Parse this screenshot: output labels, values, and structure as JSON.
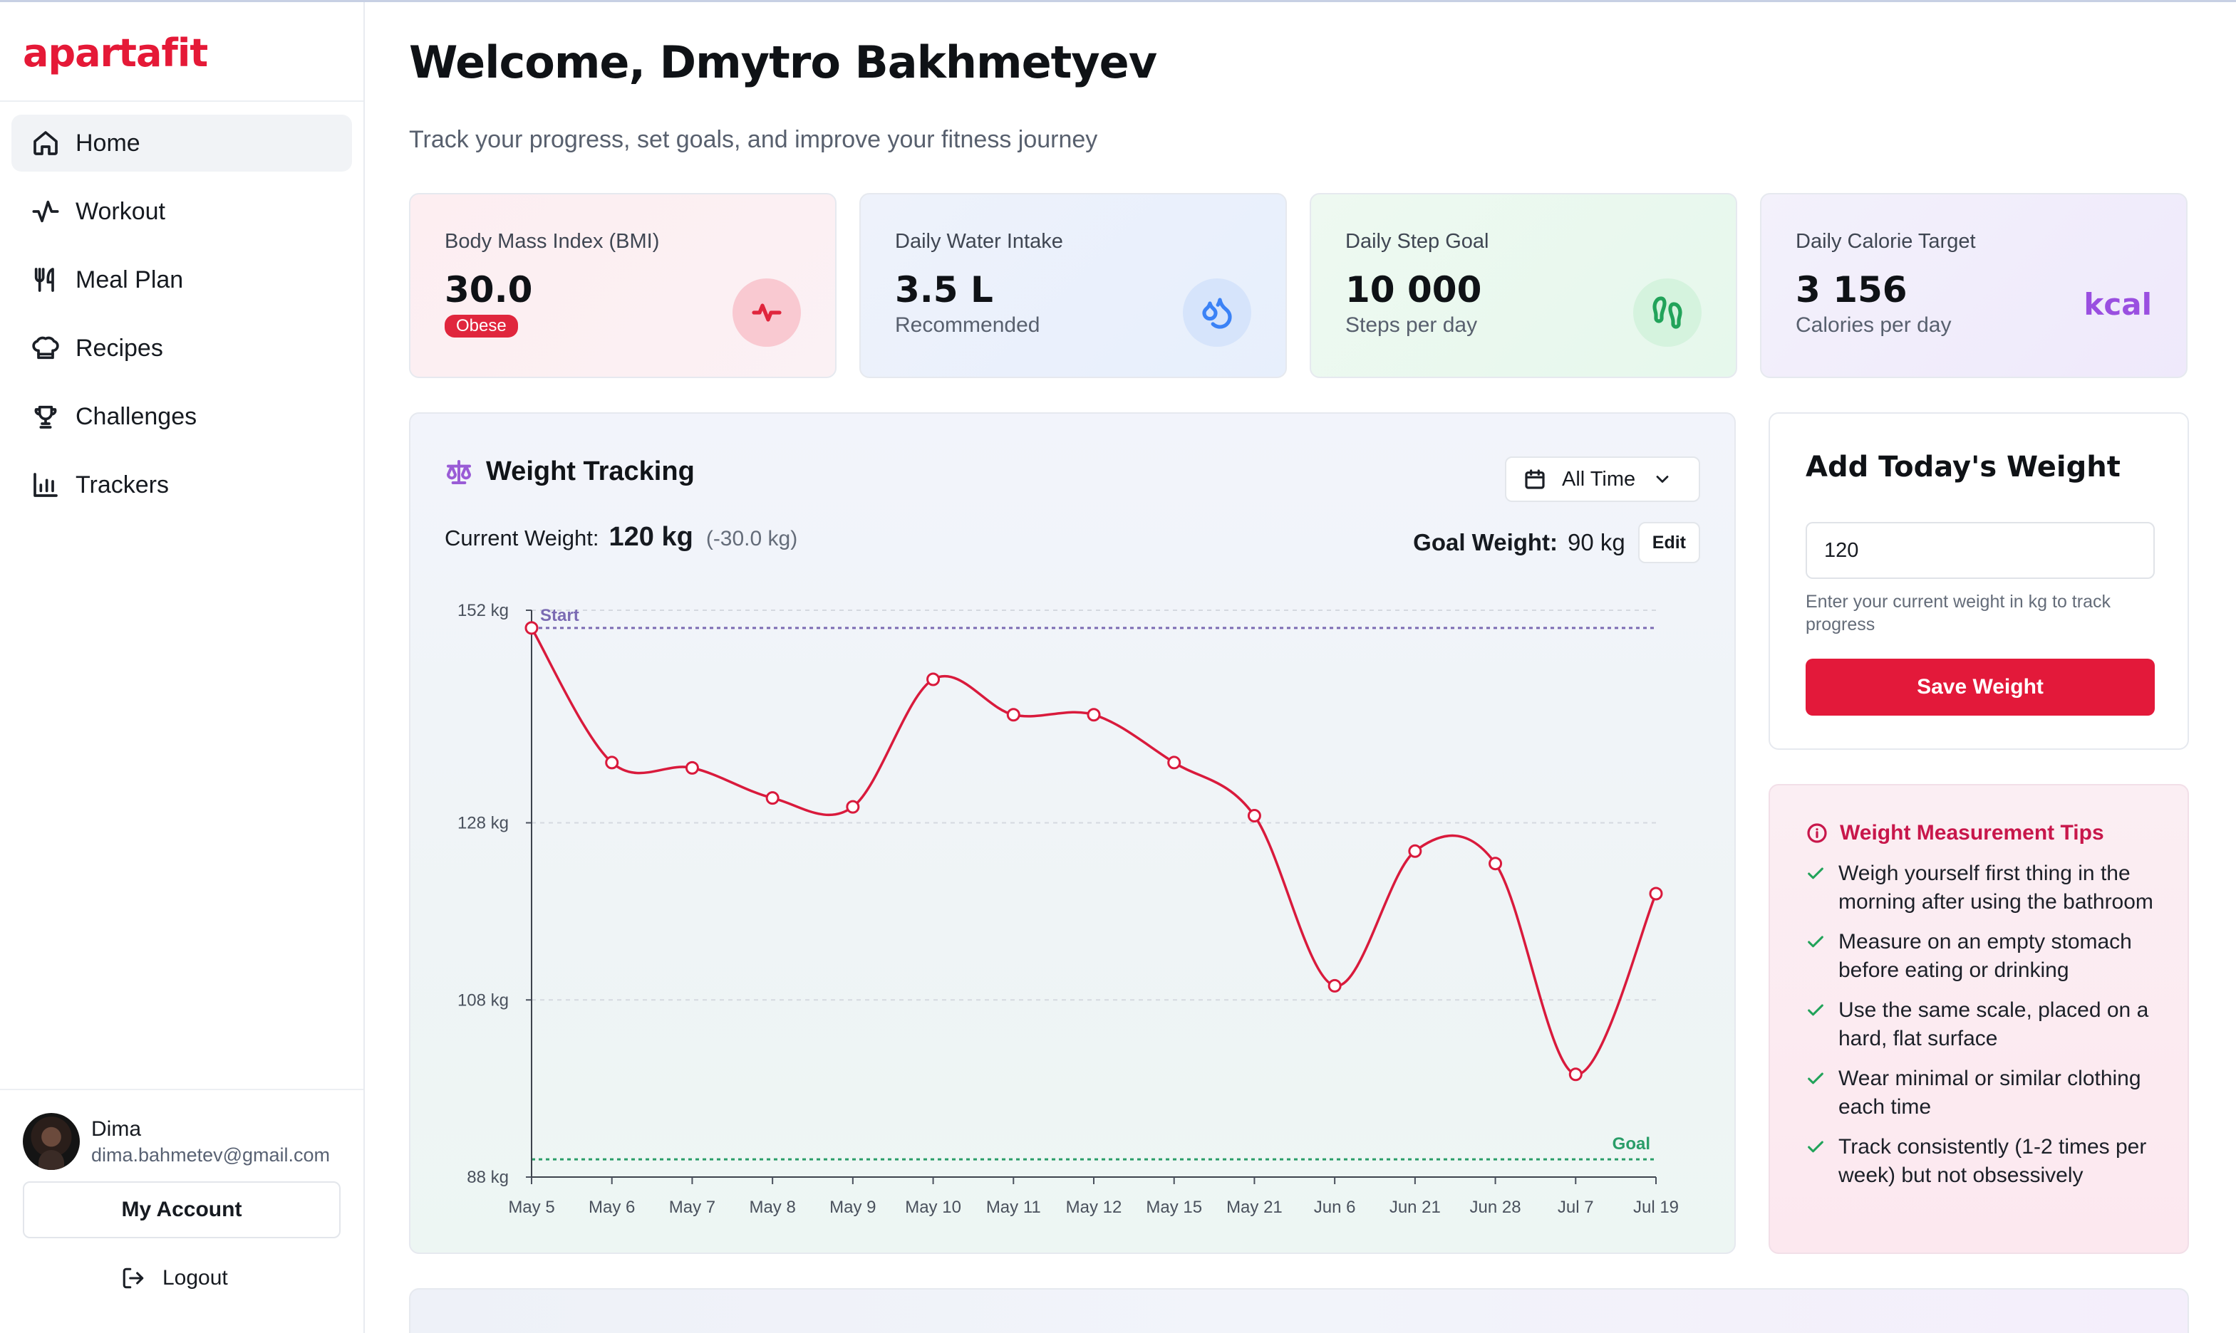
{
  "brand": {
    "logo": "apartafit",
    "accent": "#e51937"
  },
  "sidebar": {
    "items": [
      {
        "label": "Home",
        "icon": "home-icon",
        "active": true
      },
      {
        "label": "Workout",
        "icon": "activity-icon"
      },
      {
        "label": "Meal Plan",
        "icon": "utensils-icon"
      },
      {
        "label": "Recipes",
        "icon": "chef-hat-icon"
      },
      {
        "label": "Challenges",
        "icon": "trophy-icon"
      },
      {
        "label": "Trackers",
        "icon": "bar-chart-icon"
      }
    ],
    "user": {
      "name": "Dima",
      "email": "dima.bahmetev@gmail.com"
    },
    "my_account_label": "My Account",
    "logout_label": "Logout"
  },
  "header": {
    "title": "Welcome, Dmytro Bakhmetyev",
    "subtitle": "Track your progress, set goals, and improve your fitness journey"
  },
  "stats": [
    {
      "label": "Body Mass Index (BMI)",
      "value": "30.0",
      "badge": "Obese",
      "icon": "heart-pulse-icon",
      "color": "#e0263d"
    },
    {
      "label": "Daily Water Intake",
      "value": "3.5 L",
      "sub": "Recommended",
      "icon": "droplets-icon",
      "color": "#3b82f6"
    },
    {
      "label": "Daily Step Goal",
      "value": "10 000",
      "sub": "Steps per day",
      "icon": "footprints-icon",
      "color": "#22a35a"
    },
    {
      "label": "Daily Calorie Target",
      "value": "3 156",
      "sub": "Calories per day",
      "unit": "kcal",
      "color": "#9a4fe0"
    }
  ],
  "weight_tracking": {
    "title": "Weight Tracking",
    "range": "All Time",
    "current_label": "Current Weight:",
    "current_value": "120 kg",
    "current_delta": "(-30.0 kg)",
    "goal_label": "Goal Weight:",
    "goal_value": "90 kg",
    "edit_label": "Edit"
  },
  "chart_data": {
    "type": "line",
    "x": [
      "May 5",
      "May 6",
      "May 7",
      "May 8",
      "May 9",
      "May 10",
      "May 11",
      "May 12",
      "May 15",
      "May 21",
      "Jun 6",
      "Jun 21",
      "Jun 28",
      "Jul 7",
      "Jul 19"
    ],
    "values": [
      150,
      134.8,
      134.2,
      130.8,
      129.8,
      144.2,
      140.2,
      140.2,
      134.8,
      128.8,
      109.6,
      124.8,
      123.4,
      99.6,
      120
    ],
    "y_ticks": [
      "152 kg",
      "128 kg",
      "108 kg",
      "88 kg"
    ],
    "ylim": [
      88,
      152
    ],
    "reference_lines": [
      {
        "label": "Start",
        "value": 150,
        "color": "#7b6bb3"
      },
      {
        "label": "Goal",
        "value": 90,
        "color": "#2a9d68"
      }
    ],
    "line_color": "#d91a3c",
    "grid": true
  },
  "add_weight": {
    "title": "Add Today's Weight",
    "input_value": "120",
    "help": "Enter your current weight in kg to track progress",
    "save_label": "Save Weight"
  },
  "tips": {
    "title": "Weight Measurement Tips",
    "items": [
      "Weigh yourself first thing in the morning after using the bathroom",
      "Measure on an empty stomach before eating or drinking",
      "Use the same scale, placed on a hard, flat surface",
      "Wear minimal or similar clothing each time",
      "Track consistently (1-2 times per week) but not obsessively"
    ]
  }
}
